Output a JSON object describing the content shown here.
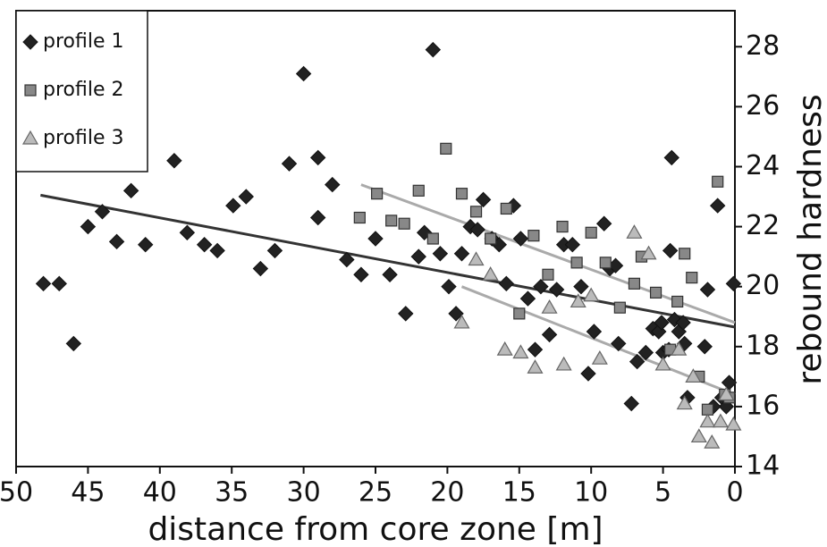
{
  "chart_data": {
    "type": "scatter",
    "xlabel": "distance from core zone [m]",
    "ylabel": "rebound hardness",
    "xlim": [
      50,
      0
    ],
    "xticks": [
      50,
      45,
      40,
      35,
      30,
      25,
      20,
      15,
      10,
      5,
      0
    ],
    "ylim": [
      14,
      29.2
    ],
    "yticks": [
      14,
      16,
      18,
      20,
      22,
      24,
      26,
      28
    ],
    "y_axis_side": "right",
    "legend": "upper left",
    "series": [
      {
        "name": "profile 1",
        "marker": "diamond",
        "color": "#222222",
        "trend_color": "#333333",
        "x": [
          48.1,
          47.0,
          46.0,
          45.0,
          44.0,
          43.0,
          42.0,
          41.0,
          39.0,
          38.1,
          36.9,
          36.0,
          34.9,
          34.0,
          33.0,
          32.0,
          31.0,
          30.0,
          29.0,
          29.0,
          28.0,
          27.0,
          26.0,
          25.0,
          24.0,
          22.9,
          22.0,
          21.6,
          21.0,
          20.5,
          19.9,
          19.4,
          19.0,
          18.4,
          17.9,
          17.5,
          16.9,
          16.4,
          15.9,
          15.4,
          14.9,
          14.4,
          13.9,
          13.5,
          12.9,
          12.4,
          11.9,
          11.3,
          10.7,
          10.2,
          9.8,
          9.1,
          8.7,
          8.3,
          8.1,
          7.2,
          6.8,
          6.2,
          5.7,
          5.3,
          5.0,
          4.5,
          4.4,
          4.2,
          3.9,
          3.5,
          3.3,
          3.6,
          2.1,
          1.9,
          1.2,
          0.9,
          0.4,
          0.1,
          0.6,
          1.5,
          4.6,
          5.1
        ],
        "y": [
          20.1,
          20.1,
          18.1,
          22.0,
          22.5,
          21.5,
          23.2,
          21.4,
          24.2,
          21.8,
          21.4,
          21.2,
          22.7,
          23.0,
          20.6,
          21.2,
          24.1,
          27.1,
          22.3,
          24.3,
          23.4,
          20.9,
          20.4,
          21.6,
          20.4,
          19.1,
          21.0,
          21.8,
          27.9,
          21.1,
          20.0,
          19.1,
          21.1,
          22.0,
          21.9,
          22.9,
          21.6,
          21.4,
          20.1,
          22.7,
          21.6,
          19.6,
          17.9,
          20.0,
          18.4,
          19.9,
          21.4,
          21.4,
          20.0,
          17.1,
          18.5,
          22.1,
          20.6,
          20.7,
          18.1,
          16.1,
          17.5,
          17.8,
          18.6,
          18.5,
          17.8,
          21.2,
          24.3,
          18.9,
          18.5,
          18.1,
          16.3,
          18.8,
          18.0,
          19.9,
          22.7,
          16.3,
          16.8,
          20.1,
          16.0,
          16.0,
          17.9,
          18.8
        ],
        "trendline": {
          "x": [
            48.3,
            0
          ],
          "y": [
            23.05,
            18.65
          ]
        }
      },
      {
        "name": "profile 2",
        "marker": "square",
        "color": "#888888",
        "trend_color": "#aaaaaa",
        "x": [
          26.1,
          24.9,
          23.9,
          23.0,
          22.0,
          21.0,
          20.1,
          19.0,
          18.0,
          17.0,
          15.9,
          15.0,
          14.0,
          13.0,
          12.0,
          11.0,
          10.0,
          9.0,
          8.0,
          7.0,
          6.5,
          5.5,
          4.5,
          4.0,
          3.5,
          3.0,
          2.5,
          1.9,
          1.2,
          0.7,
          0.4
        ],
        "y": [
          22.3,
          23.1,
          22.2,
          22.1,
          23.2,
          21.6,
          24.6,
          23.1,
          22.5,
          21.6,
          22.6,
          19.1,
          21.7,
          20.4,
          22.0,
          20.8,
          21.8,
          20.8,
          19.3,
          20.1,
          21.0,
          19.8,
          17.9,
          19.5,
          21.1,
          20.3,
          17.0,
          15.9,
          23.5,
          16.4,
          16.3
        ],
        "trendline": {
          "x": [
            26.0,
            0
          ],
          "y": [
            23.4,
            18.8
          ]
        }
      },
      {
        "name": "profile 3",
        "marker": "triangle",
        "color": "#bbbbbb",
        "trend_color": "#aaaaaa",
        "x": [
          19.0,
          18.0,
          17.0,
          16.0,
          14.9,
          13.9,
          12.9,
          11.9,
          10.9,
          10.0,
          9.4,
          7.0,
          6.0,
          5.0,
          3.9,
          3.5,
          2.9,
          2.5,
          1.9,
          1.6,
          1.0,
          0.6,
          0.1
        ],
        "y": [
          18.8,
          20.9,
          20.4,
          17.9,
          17.8,
          17.3,
          19.3,
          17.4,
          19.5,
          19.7,
          17.6,
          21.8,
          21.1,
          17.4,
          17.9,
          16.1,
          17.0,
          15.0,
          15.5,
          14.8,
          15.5,
          16.4,
          15.4
        ],
        "trendline": {
          "x": [
            19.0,
            0
          ],
          "y": [
            20.0,
            16.4
          ]
        }
      }
    ]
  }
}
